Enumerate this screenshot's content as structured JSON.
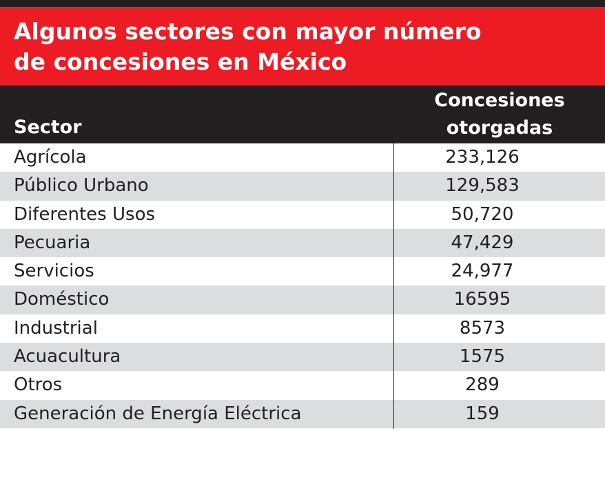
{
  "colors": {
    "title_bg": "#ed1c24",
    "header_bg": "#231f20",
    "alt_row_bg": "#dcdddf",
    "text": "#231f20"
  },
  "chart_data": {
    "type": "table",
    "title_line1": "Algunos sectores con mayor número",
    "title_line2": "de concesiones en México",
    "columns": [
      "Sector",
      "Concesiones otorgadas"
    ],
    "header": {
      "sector": "Sector",
      "concesiones_line1": "Concesiones",
      "concesiones_line2": "otorgadas"
    },
    "rows": [
      {
        "sector": "Agrícola",
        "value": "233,126"
      },
      {
        "sector": "Público Urbano",
        "value": "129,583"
      },
      {
        "sector": "Diferentes Usos",
        "value": "50,720"
      },
      {
        "sector": "Pecuaria",
        "value": "47,429"
      },
      {
        "sector": "Servicios",
        "value": "24,977"
      },
      {
        "sector": "Doméstico",
        "value": "16595"
      },
      {
        "sector": "Industrial",
        "value": "8573"
      },
      {
        "sector": "Acuacultura",
        "value": "1575"
      },
      {
        "sector": "Otros",
        "value": "289"
      },
      {
        "sector": "Generación de Energía Eléctrica",
        "value": "159"
      }
    ]
  }
}
